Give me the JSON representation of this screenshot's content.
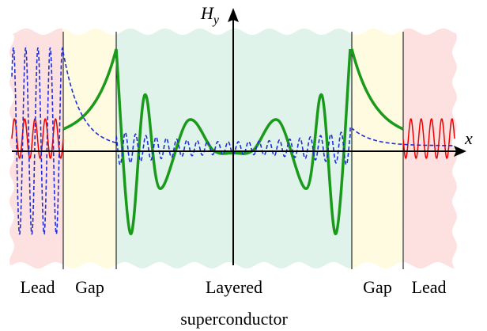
{
  "axis_labels": {
    "y": {
      "main": "H",
      "sub": "y"
    },
    "x": "x"
  },
  "regions": [
    {
      "label": [
        "Lead"
      ]
    },
    {
      "label": [
        "Gap"
      ]
    },
    {
      "label": [
        "Layered",
        "superconductor"
      ]
    },
    {
      "label": [
        "Gap"
      ]
    },
    {
      "label": [
        "Lead"
      ]
    }
  ]
}
